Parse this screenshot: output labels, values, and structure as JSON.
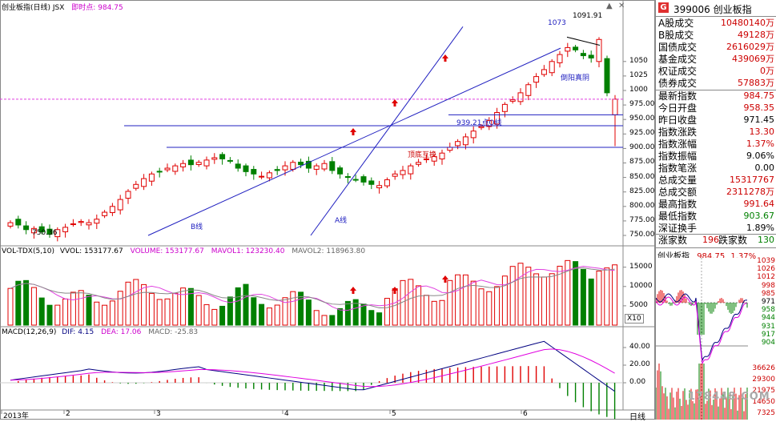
{
  "main_panel": {
    "title": "创业板指(日线) JSX",
    "instant_label": "即时点:",
    "instant_value": "984.75",
    "y_ticks": [
      "1050",
      "1025",
      "1000",
      "975.00",
      "950.00",
      "925.00",
      "900.00",
      "875.00",
      "850.00",
      "825.00",
      "800.00",
      "775.00",
      "750.00"
    ],
    "annotations": {
      "high_label": "1091.91",
      "high2_label": "1073",
      "low_label": "750.36",
      "line_o": "939.21点O线",
      "line_b": "B线",
      "line_a": "A线",
      "top_bottom": "顶底互换",
      "candle_note": "倒阳真阴"
    }
  },
  "volume_panel": {
    "title": "VOL-TDX(5,10)",
    "vvol_label": "VVOL: 153177.67",
    "volume_label": "VOLUME: 153177.67",
    "mavol1_label": "MAVOL1: 123230.40",
    "mavol2_label": "MAVOL2: 118963.80",
    "y_ticks": [
      "15000",
      "10000",
      "5000"
    ],
    "unit": "X10"
  },
  "macd_panel": {
    "title": "MACD(12,26,9)",
    "dif_label": "DIF: 4.15",
    "dea_label": "DEA: 17.06",
    "macd_label": "MACD: -25.83",
    "y_ticks": [
      "40.00",
      "20.00",
      "0.00"
    ]
  },
  "x_axis": {
    "labels": [
      "2013年",
      "2",
      "3",
      "4",
      "5",
      "6"
    ],
    "period": "日线"
  },
  "sidebar": {
    "code": "399006",
    "name": "创业板指",
    "group1": [
      {
        "label": "A股成交",
        "value": "10480140万",
        "color": "#cc0000"
      },
      {
        "label": "B股成交",
        "value": "49128万",
        "color": "#cc0000"
      },
      {
        "label": "国债成交",
        "value": "2616029万",
        "color": "#cc0000"
      },
      {
        "label": "基金成交",
        "value": "439069万",
        "color": "#cc0000"
      },
      {
        "label": "权证成交",
        "value": "0万",
        "color": "#cc0000"
      },
      {
        "label": "债券成交",
        "value": "57883万",
        "color": "#cc0000"
      }
    ],
    "group2": [
      {
        "label": "最新指数",
        "value": "984.75",
        "color": "#cc0000"
      },
      {
        "label": "今日开盘",
        "value": "958.35",
        "color": "#cc0000"
      },
      {
        "label": "昨日收盘",
        "value": "971.45",
        "color": "#000000"
      },
      {
        "label": "指数涨跌",
        "value": "13.30",
        "color": "#cc0000"
      },
      {
        "label": "指数涨幅",
        "value": "1.37%",
        "color": "#cc0000"
      },
      {
        "label": "指数振幅",
        "value": "9.06%",
        "color": "#000000"
      },
      {
        "label": "指数笔涨",
        "value": "0.00",
        "color": "#000000"
      },
      {
        "label": "总成交量",
        "value": "15317767",
        "color": "#cc0000"
      },
      {
        "label": "总成交额",
        "value": "2311278万",
        "color": "#cc0000"
      },
      {
        "label": "最高指数",
        "value": "991.64",
        "color": "#cc0000"
      },
      {
        "label": "最低指数",
        "value": "903.67",
        "color": "#008000"
      },
      {
        "label": "深证换手",
        "value": "1.89%",
        "color": "#000000"
      }
    ],
    "rise_label": "涨家数",
    "rise_value": "196",
    "fall_label": "跌家数",
    "fall_value": "130",
    "mini_chart": {
      "title": "创业板指",
      "price": "984.75",
      "change": "1.37%",
      "price_ticks": [
        "1039",
        "1026",
        "1012",
        "998",
        "985",
        "971",
        "958",
        "944",
        "931",
        "917",
        "904"
      ],
      "vol_ticks": [
        "36626",
        "29300",
        "21975",
        "14650",
        "7325"
      ]
    }
  },
  "watermark": "178448.COM",
  "colors": {
    "up": "#e00000",
    "down": "#008000",
    "line": "#2020c0",
    "dif": "#000080",
    "dea": "#e000e0"
  }
}
